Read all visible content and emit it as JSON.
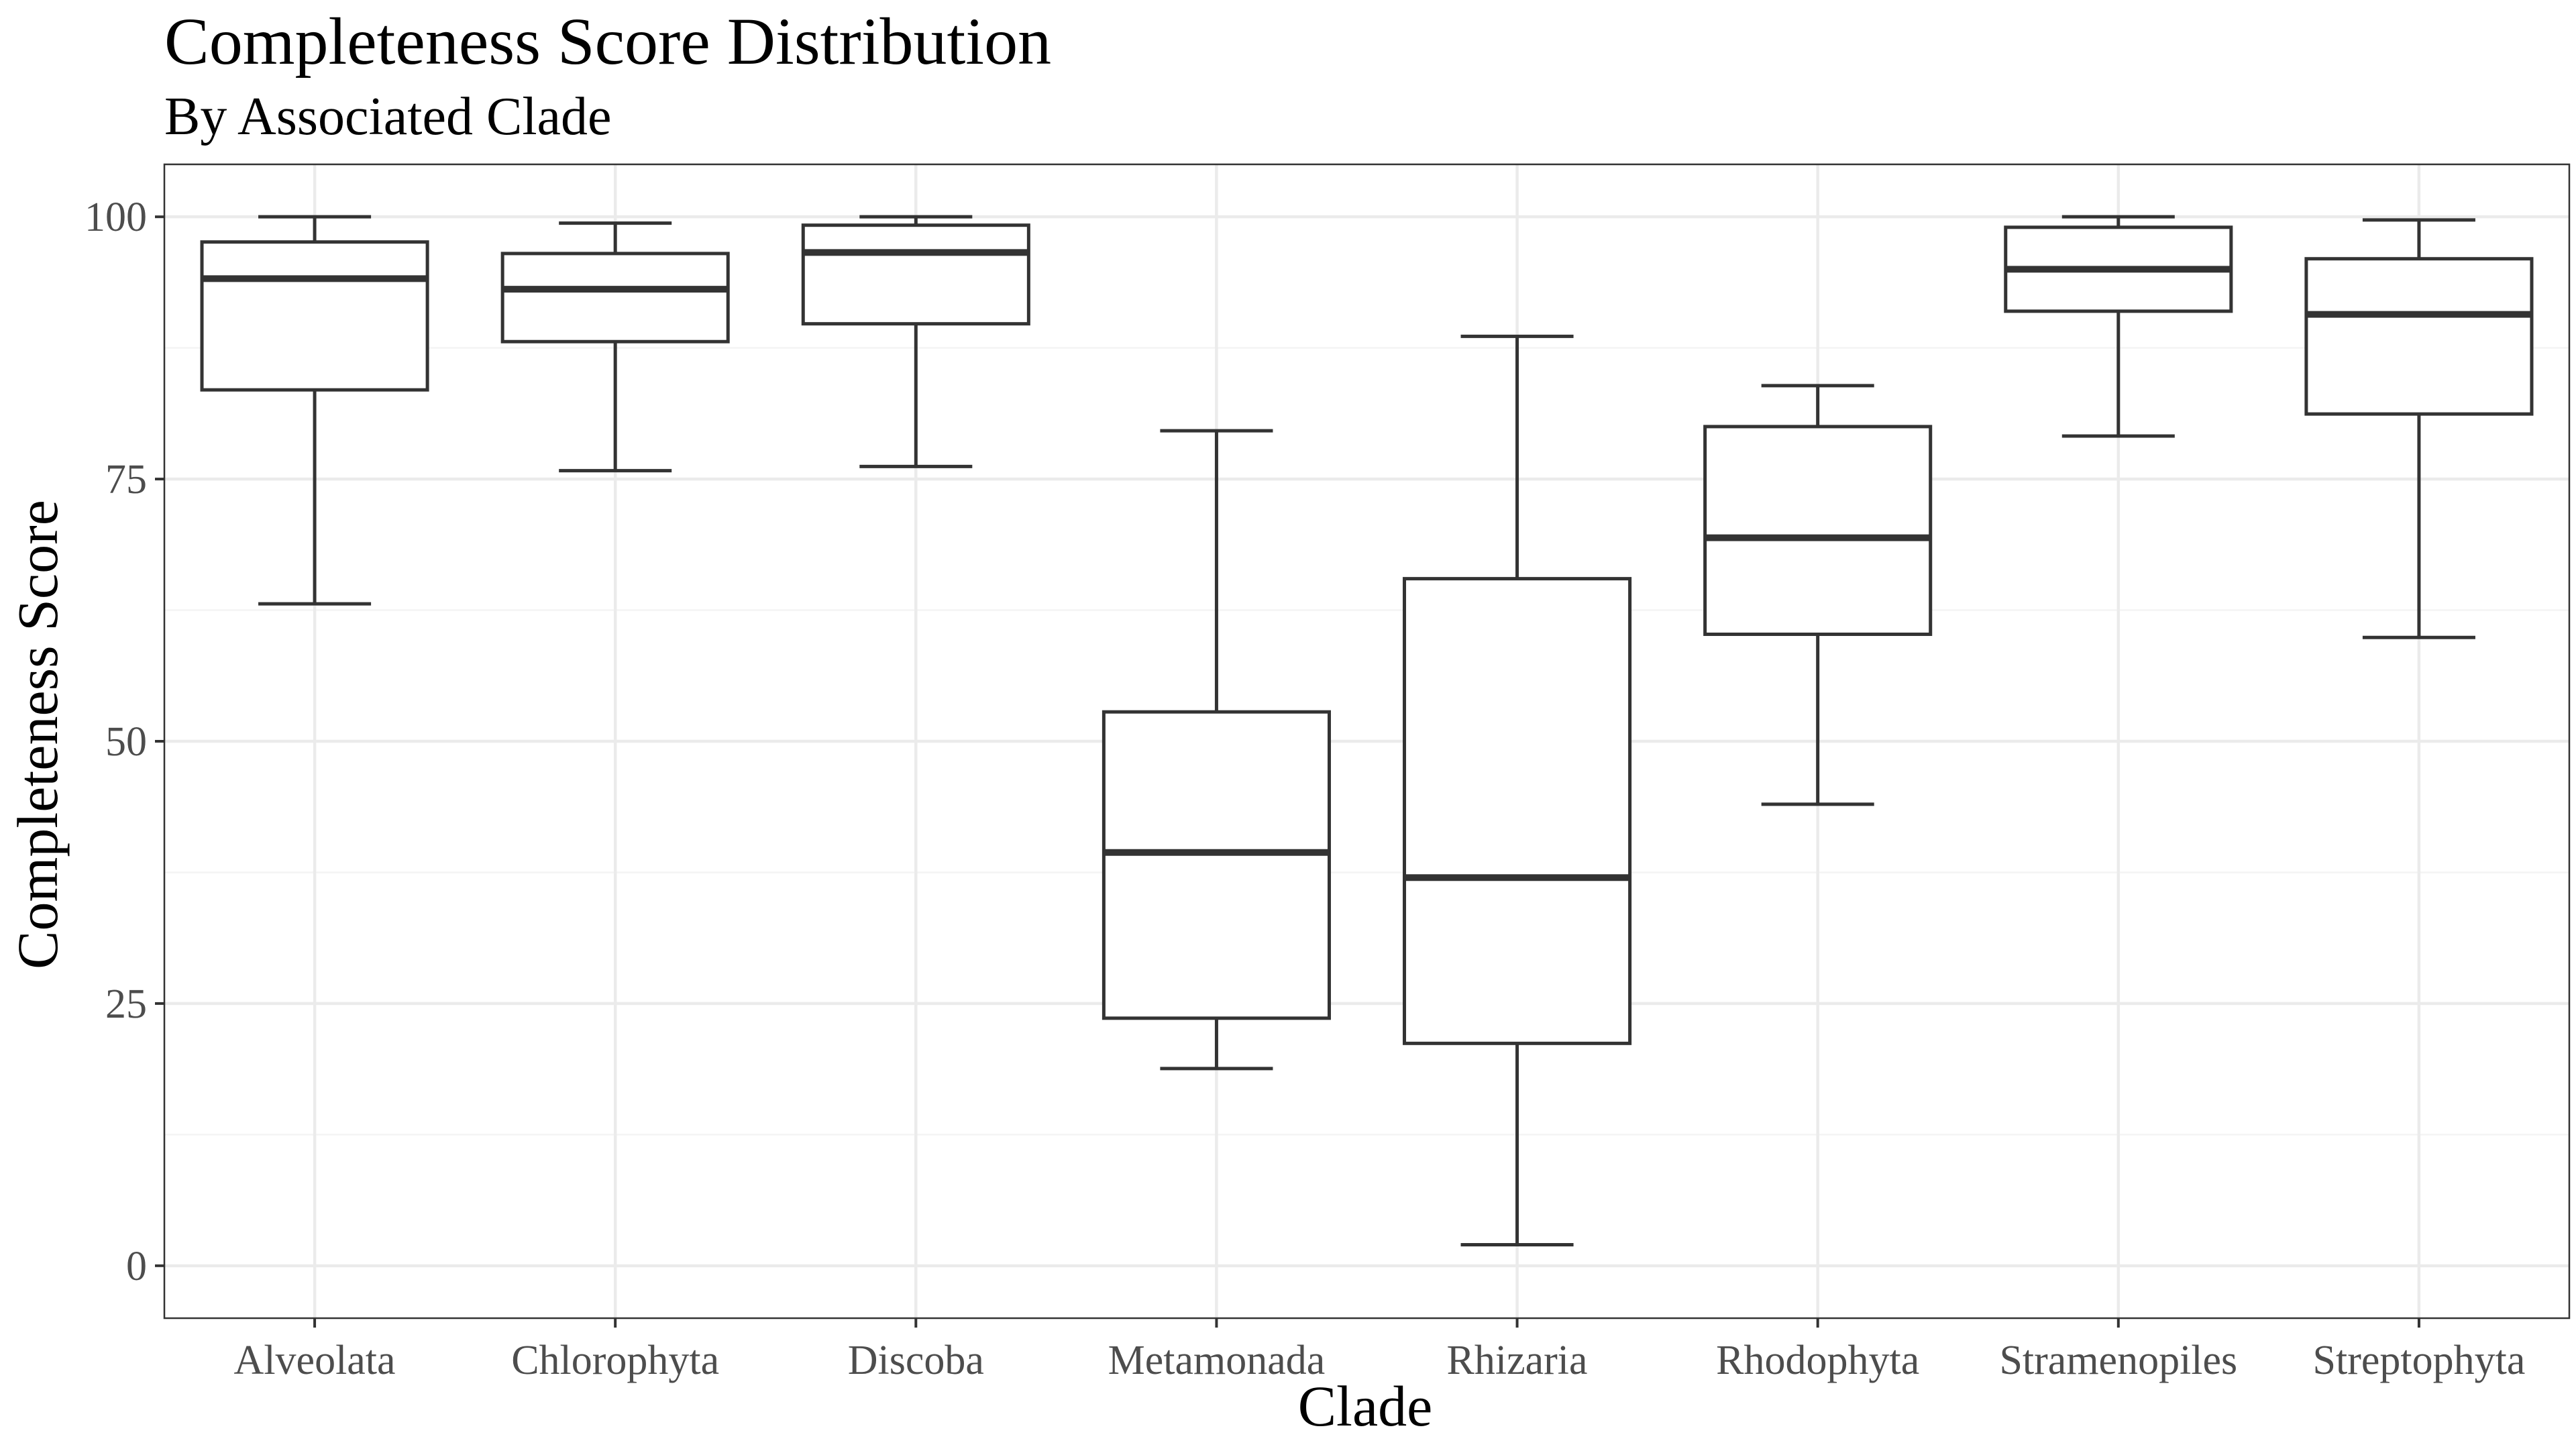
{
  "chart_data": {
    "type": "boxplot",
    "title": "Completeness Score Distribution",
    "subtitle": "By Associated Clade",
    "xlabel": "Clade",
    "ylabel": "Completeness Score",
    "ylim": [
      -5,
      105
    ],
    "yticks": [
      0,
      25,
      50,
      75,
      100
    ],
    "grid": true,
    "categories": [
      "Alveolata",
      "Chlorophyta",
      "Discoba",
      "Metamonada",
      "Rhizaria",
      "Rhodophyta",
      "Stramenopiles",
      "Streptophyta"
    ],
    "boxes": [
      {
        "category": "Alveolata",
        "min": 63.1,
        "q1": 83.5,
        "median": 94.1,
        "q3": 97.6,
        "max": 100.0
      },
      {
        "category": "Chlorophyta",
        "min": 75.8,
        "q1": 88.1,
        "median": 93.1,
        "q3": 96.5,
        "max": 99.4
      },
      {
        "category": "Discoba",
        "min": 76.2,
        "q1": 89.8,
        "median": 96.6,
        "q3": 99.2,
        "max": 100.0
      },
      {
        "category": "Metamonada",
        "min": 18.8,
        "q1": 23.6,
        "median": 39.4,
        "q3": 52.8,
        "max": 79.6
      },
      {
        "category": "Rhizaria",
        "min": 2.0,
        "q1": 21.2,
        "median": 37.0,
        "q3": 65.5,
        "max": 88.6
      },
      {
        "category": "Rhodophyta",
        "min": 44.0,
        "q1": 60.2,
        "median": 69.4,
        "q3": 80.0,
        "max": 83.9
      },
      {
        "category": "Stramenopiles",
        "min": 79.1,
        "q1": 91.0,
        "median": 95.0,
        "q3": 99.0,
        "max": 100.0
      },
      {
        "category": "Streptophyta",
        "min": 59.9,
        "q1": 81.2,
        "median": 90.7,
        "q3": 96.0,
        "max": 99.7
      }
    ]
  }
}
